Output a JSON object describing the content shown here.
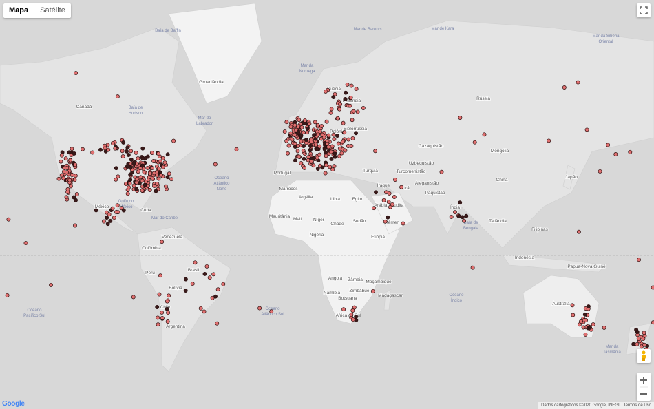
{
  "map_type": {
    "map": "Mapa",
    "satellite": "Satélite"
  },
  "countries": [
    "Groenlândia",
    "Canadá",
    "Rússia",
    "Mongólia",
    "Cazaquistão",
    "China",
    "Índia",
    "Irã",
    "Iraque",
    "Turquia",
    "Argélia",
    "Líbia",
    "Egito",
    "Mali",
    "Níger",
    "Chade",
    "Sudão",
    "Mauritânia",
    "Nigéria",
    "Etiópia",
    "Angola",
    "Zâmbia",
    "Namíbia",
    "Botsuana",
    "Moçambique",
    "Madagascar",
    "Zimbábue",
    "África do Sul",
    "Brasil",
    "Bolívia",
    "Peru",
    "Chile",
    "Argentina",
    "Venezuela",
    "Colômbia",
    "México",
    "Cuba",
    "Austrália",
    "Indonésia",
    "Papua-Nova Guiné",
    "Filipinas",
    "Tailândia",
    "Japão",
    "Paquistão",
    "Afeganistão",
    "Turcomenistão",
    "Uzbequistão",
    "Arábia Saudita",
    "Iêmen",
    "Suécia",
    "Finlândia",
    "Bielorrússia",
    "Polônia",
    "Portugal",
    "Marrocos"
  ],
  "waters": [
    [
      "Oceano",
      "Atlântico",
      "Norte"
    ],
    [
      "Oceano",
      "Atlântico Sul"
    ],
    [
      "Oceano",
      "Pacífico Sul"
    ],
    [
      "Oceano",
      "Índico"
    ],
    [
      "Mar da",
      "Noruega"
    ],
    [
      "Mar de Barents"
    ],
    [
      "Mar de Kara"
    ],
    [
      "Mar do",
      "Labrador"
    ],
    [
      "Baía de Baffin"
    ],
    [
      "Baía de",
      "Hudson"
    ],
    [
      "Golfo do",
      "México"
    ],
    [
      "Mar do Caribe"
    ],
    [
      "Baía de",
      "Bengala"
    ],
    [
      "Mar da",
      "Tasmânia"
    ],
    [
      "Mar da Sibéria",
      "Oriental"
    ]
  ],
  "footer": {
    "attribution": "Dados cartográficos ©2020 Google, INEGI",
    "terms": "Termos de Uso"
  },
  "logo": "Google"
}
